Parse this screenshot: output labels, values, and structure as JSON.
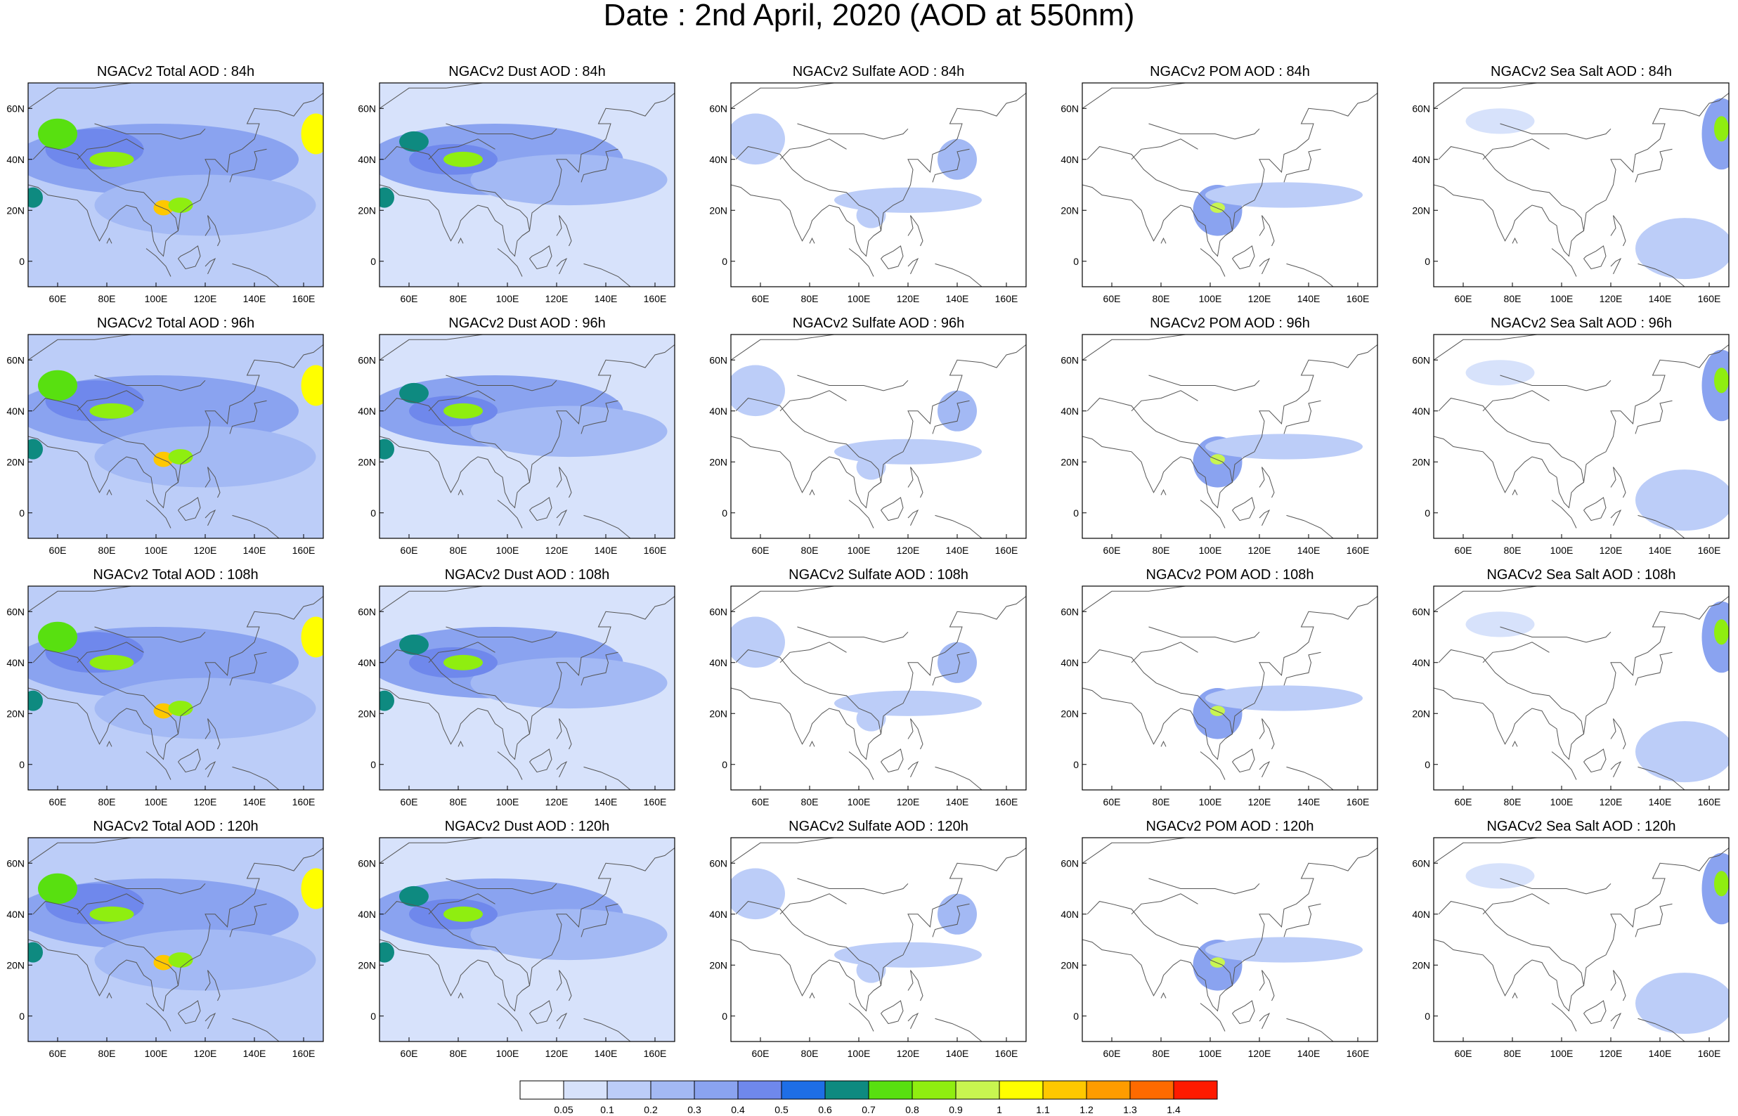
{
  "title": "Date : 2nd April, 2020 (AOD at 550nm)",
  "palette": [
    "#ffffff",
    "#d7e2fb",
    "#bccdf8",
    "#a3b9f4",
    "#8aa3f0",
    "#6f88ec",
    "#1e6ee6",
    "#0e8a80",
    "#58e010",
    "#8fee10",
    "#c8f550",
    "#ffff00",
    "#ffc800",
    "#ff9c00",
    "#ff6a00",
    "#ff1a00"
  ],
  "colorbar": {
    "labels": [
      "0.05",
      "0.1",
      "0.2",
      "0.3",
      "0.4",
      "0.5",
      "0.6",
      "0.7",
      "0.8",
      "0.9",
      "1",
      "1.1",
      "1.2",
      "1.3",
      "1.4"
    ]
  },
  "map": {
    "lon_range": [
      48,
      168
    ],
    "lat_range": [
      -10,
      70
    ],
    "lon_tick_labels": [
      "60E",
      "80E",
      "100E",
      "120E",
      "140E",
      "160E"
    ],
    "lat_tick_labels": [
      "60N",
      "40N",
      "20N",
      "0"
    ],
    "coastline_color": "#555555",
    "land_shown": true
  },
  "rows": [
    {
      "panels": [
        {
          "title": "NGACv2 Total AOD : 84h",
          "species": "total"
        },
        {
          "title": "NGACv2 Dust AOD : 84h",
          "species": "dust"
        },
        {
          "title": "NGACv2 Sulfate AOD : 84h",
          "species": "sulfate"
        },
        {
          "title": "NGACv2 POM AOD : 84h",
          "species": "pom"
        },
        {
          "title": "NGACv2 Sea Salt AOD : 84h",
          "species": "seasalt"
        }
      ]
    },
    {
      "panels": [
        {
          "title": "NGACv2 Total AOD : 96h",
          "species": "total"
        },
        {
          "title": "NGACv2 Dust AOD : 96h",
          "species": "dust"
        },
        {
          "title": "NGACv2 Sulfate AOD : 96h",
          "species": "sulfate"
        },
        {
          "title": "NGACv2 POM AOD : 96h",
          "species": "pom"
        },
        {
          "title": "NGACv2 Sea Salt AOD : 96h",
          "species": "seasalt"
        }
      ]
    },
    {
      "panels": [
        {
          "title": "NGACv2 Total AOD : 108h",
          "species": "total"
        },
        {
          "title": "NGACv2 Dust AOD : 108h",
          "species": "dust"
        },
        {
          "title": "NGACv2 Sulfate AOD : 108h",
          "species": "sulfate"
        },
        {
          "title": "NGACv2 POM AOD : 108h",
          "species": "pom"
        },
        {
          "title": "NGACv2 Sea Salt AOD : 108h",
          "species": "seasalt"
        }
      ]
    },
    {
      "panels": [
        {
          "title": "NGACv2 Total AOD : 120h",
          "species": "total"
        },
        {
          "title": "NGACv2 Dust AOD : 120h",
          "species": "dust"
        },
        {
          "title": "NGACv2 Sulfate AOD : 120h",
          "species": "sulfate"
        },
        {
          "title": "NGACv2 POM AOD : 120h",
          "species": "pom"
        },
        {
          "title": "NGACv2 Sea Salt  AOD : 120h",
          "species": "seasalt"
        }
      ]
    }
  ],
  "fields": {
    "total": {
      "background_level": 2,
      "blobs": [
        {
          "lon": 100,
          "lat": 40,
          "rlon": 58,
          "rlat": 14,
          "level": 4
        },
        {
          "lon": 120,
          "lat": 22,
          "rlon": 45,
          "rlat": 12,
          "level": 3
        },
        {
          "lon": 75,
          "lat": 44,
          "rlon": 20,
          "rlat": 8,
          "level": 5
        },
        {
          "lon": 60,
          "lat": 50,
          "rlon": 8,
          "rlat": 6,
          "level": 8
        },
        {
          "lon": 82,
          "lat": 40,
          "rlon": 9,
          "rlat": 3,
          "level": 9
        },
        {
          "lon": 103,
          "lat": 21,
          "rlon": 4,
          "rlat": 3,
          "level": 12
        },
        {
          "lon": 110,
          "lat": 22,
          "rlon": 5,
          "rlat": 3,
          "level": 9
        },
        {
          "lon": 165,
          "lat": 50,
          "rlon": 6,
          "rlat": 8,
          "level": 11
        },
        {
          "lon": 50,
          "lat": 25,
          "rlon": 4,
          "rlat": 4,
          "level": 7
        }
      ]
    },
    "dust": {
      "background_level": 1,
      "blobs": [
        {
          "lon": 95,
          "lat": 40,
          "rlon": 52,
          "rlat": 14,
          "level": 4
        },
        {
          "lon": 125,
          "lat": 32,
          "rlon": 40,
          "rlat": 10,
          "level": 3
        },
        {
          "lon": 78,
          "lat": 40,
          "rlon": 18,
          "rlat": 6,
          "level": 5
        },
        {
          "lon": 82,
          "lat": 40,
          "rlon": 8,
          "rlat": 3,
          "level": 9
        },
        {
          "lon": 62,
          "lat": 47,
          "rlon": 6,
          "rlat": 4,
          "level": 7
        },
        {
          "lon": 50,
          "lat": 25,
          "rlon": 4,
          "rlat": 4,
          "level": 7
        }
      ]
    },
    "sulfate": {
      "background_level": 0,
      "blobs": [
        {
          "lon": 58,
          "lat": 48,
          "rlon": 12,
          "rlat": 10,
          "level": 2
        },
        {
          "lon": 120,
          "lat": 24,
          "rlon": 30,
          "rlat": 5,
          "level": 2
        },
        {
          "lon": 140,
          "lat": 40,
          "rlon": 8,
          "rlat": 8,
          "level": 3
        },
        {
          "lon": 105,
          "lat": 18,
          "rlon": 6,
          "rlat": 5,
          "level": 2
        }
      ]
    },
    "pom": {
      "background_level": 0,
      "blobs": [
        {
          "lon": 103,
          "lat": 20,
          "rlon": 10,
          "rlat": 10,
          "level": 4
        },
        {
          "lon": 130,
          "lat": 26,
          "rlon": 32,
          "rlat": 5,
          "level": 2
        },
        {
          "lon": 103,
          "lat": 21,
          "rlon": 3,
          "rlat": 2,
          "level": 10
        }
      ]
    },
    "seasalt": {
      "background_level": 0,
      "blobs": [
        {
          "lon": 165,
          "lat": 50,
          "rlon": 8,
          "rlat": 14,
          "level": 4
        },
        {
          "lon": 165,
          "lat": 52,
          "rlon": 3,
          "rlat": 5,
          "level": 9
        },
        {
          "lon": 150,
          "lat": 5,
          "rlon": 20,
          "rlat": 12,
          "level": 2
        },
        {
          "lon": 75,
          "lat": 55,
          "rlon": 14,
          "rlat": 5,
          "level": 1
        }
      ]
    }
  }
}
